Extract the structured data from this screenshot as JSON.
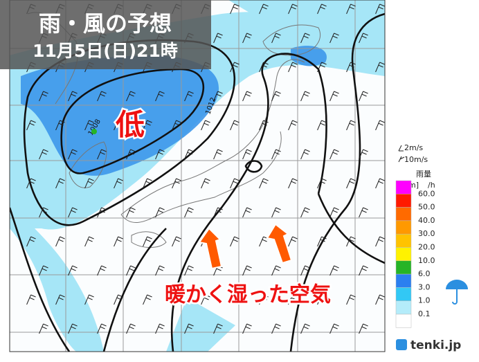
{
  "title": "雨・風の予想",
  "datetime": "11月5日(日)21時",
  "map_labels": {
    "low": "低",
    "airflow": "暖かく湿った空気"
  },
  "isobars": [
    "1008",
    "1012"
  ],
  "legend": {
    "wind": [
      "2m/s",
      "10m/s"
    ],
    "title": "雨量",
    "unit": "[mm]",
    "per_hour": "/h",
    "swatches": [
      "#ff00ff",
      "#ff1a00",
      "#ff6a00",
      "#ff9900",
      "#ffc300",
      "#fff200",
      "#26b426",
      "#2b7ff0",
      "#32c8f5",
      "#b4ecfa",
      "#ffffff"
    ],
    "levels": [
      "60.0",
      "50.0",
      "40.0",
      "30.0",
      "20.0",
      "10.0",
      "6.0",
      "3.0",
      "1.0",
      "0.1"
    ]
  },
  "brand": "tenki.jp"
}
